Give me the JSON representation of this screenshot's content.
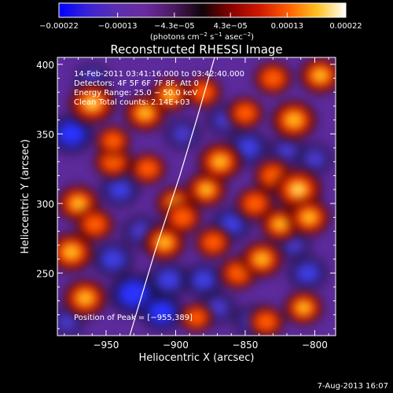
{
  "chart_data": {
    "type": "heatmap",
    "title": "Reconstructed RHESSI Image",
    "xlabel": "Heliocentric X (arcsec)",
    "ylabel": "Heliocentric Y (arcsec)",
    "xlim": [
      -985,
      -785
    ],
    "ylim": [
      205,
      405
    ],
    "x_ticks": [
      -950,
      -900,
      -850,
      -800
    ],
    "x_tick_labels": [
      "−950",
      "−900",
      "−850",
      "−800"
    ],
    "y_ticks": [
      250,
      300,
      350,
      400
    ],
    "y_tick_labels": [
      "250",
      "300",
      "350",
      "400"
    ],
    "colorbar": {
      "min": -0.00022,
      "max": 0.00022,
      "tick_labels": [
        "−0.00022",
        "−0.00013",
        "−4.3e−05",
        "4.3e−05",
        "0.00013",
        "0.00022"
      ],
      "tick_values": [
        -0.00022,
        -0.00013,
        -4.3e-05,
        4.3e-05,
        0.00013,
        0.00022
      ],
      "units_label": "(photons cm",
      "units_exp1": "−2",
      "units_mid": " s",
      "units_exp2": "−1",
      "units_tail": " asec",
      "units_exp3": "−2",
      "units_close": ")",
      "colors": [
        "#0000ff",
        "#3a22d6",
        "#5a2fb0",
        "#5b2070",
        "#1a0608",
        "#8a0000",
        "#d11800",
        "#ff6000",
        "#ffb000",
        "#ffff60",
        "#ffffff"
      ]
    },
    "annotations": {
      "time_range": "14-Feb-2011 03:41:16.000 to 03:42:40.000",
      "detectors": "Detectors: 4F 5F 6F 7F 8F, Att 0",
      "energy": "Energy Range: 25.0 − 50.0 keV",
      "clean": "Clean     Total counts: 2.14E+03",
      "peak": "Position of Peak = [−955,389]"
    },
    "limb_line": [
      [
        -933,
        205
      ],
      [
        -915,
        265
      ],
      [
        -897,
        320
      ],
      [
        -885,
        360
      ],
      [
        -872,
        405
      ]
    ],
    "hot_spots": [
      {
        "x": -960,
        "y": 372,
        "v": 0.85
      },
      {
        "x": -922,
        "y": 365,
        "v": 0.7
      },
      {
        "x": -904,
        "y": 378,
        "v": 0.6
      },
      {
        "x": -878,
        "y": 310,
        "v": 0.65
      },
      {
        "x": -868,
        "y": 330,
        "v": 0.75
      },
      {
        "x": -900,
        "y": 300,
        "v": 0.6
      },
      {
        "x": -920,
        "y": 325,
        "v": 0.5
      },
      {
        "x": -945,
        "y": 330,
        "v": 0.55
      },
      {
        "x": -970,
        "y": 300,
        "v": 0.7
      },
      {
        "x": -975,
        "y": 265,
        "v": 0.8
      },
      {
        "x": -965,
        "y": 232,
        "v": 0.75
      },
      {
        "x": -958,
        "y": 285,
        "v": 0.55
      },
      {
        "x": -908,
        "y": 272,
        "v": 0.7
      },
      {
        "x": -895,
        "y": 290,
        "v": 0.55
      },
      {
        "x": -873,
        "y": 272,
        "v": 0.5
      },
      {
        "x": -855,
        "y": 250,
        "v": 0.55
      },
      {
        "x": -838,
        "y": 260,
        "v": 0.7
      },
      {
        "x": -825,
        "y": 285,
        "v": 0.6
      },
      {
        "x": -830,
        "y": 320,
        "v": 0.55
      },
      {
        "x": -843,
        "y": 300,
        "v": 0.55
      },
      {
        "x": -812,
        "y": 310,
        "v": 0.9
      },
      {
        "x": -804,
        "y": 290,
        "v": 0.7
      },
      {
        "x": -815,
        "y": 360,
        "v": 0.8
      },
      {
        "x": -796,
        "y": 392,
        "v": 0.7
      },
      {
        "x": -830,
        "y": 390,
        "v": 0.55
      },
      {
        "x": -850,
        "y": 365,
        "v": 0.5
      },
      {
        "x": -880,
        "y": 380,
        "v": 0.5
      },
      {
        "x": -808,
        "y": 225,
        "v": 0.6
      },
      {
        "x": -835,
        "y": 215,
        "v": 0.5
      },
      {
        "x": -885,
        "y": 218,
        "v": 0.4
      },
      {
        "x": -945,
        "y": 345,
        "v": 0.45
      }
    ],
    "cold_spots": [
      {
        "x": -930,
        "y": 235,
        "v": 0.9
      },
      {
        "x": -910,
        "y": 222,
        "v": 0.7
      },
      {
        "x": -945,
        "y": 260,
        "v": 0.6
      },
      {
        "x": -905,
        "y": 245,
        "v": 0.6
      },
      {
        "x": -880,
        "y": 245,
        "v": 0.55
      },
      {
        "x": -845,
        "y": 215,
        "v": 0.45
      },
      {
        "x": -870,
        "y": 225,
        "v": 0.5
      },
      {
        "x": -860,
        "y": 285,
        "v": 0.55
      },
      {
        "x": -848,
        "y": 340,
        "v": 0.6
      },
      {
        "x": -865,
        "y": 360,
        "v": 0.45
      },
      {
        "x": -820,
        "y": 338,
        "v": 0.4
      },
      {
        "x": -975,
        "y": 350,
        "v": 0.75
      },
      {
        "x": -940,
        "y": 310,
        "v": 0.55
      },
      {
        "x": -925,
        "y": 280,
        "v": 0.5
      },
      {
        "x": -895,
        "y": 350,
        "v": 0.45
      },
      {
        "x": -960,
        "y": 390,
        "v": 0.35
      },
      {
        "x": -805,
        "y": 250,
        "v": 0.55
      },
      {
        "x": -800,
        "y": 332,
        "v": 0.45
      },
      {
        "x": -815,
        "y": 270,
        "v": 0.35
      },
      {
        "x": -978,
        "y": 215,
        "v": 0.4
      }
    ]
  },
  "footer": {
    "date_stamp": "7-Aug-2013 16:07"
  }
}
